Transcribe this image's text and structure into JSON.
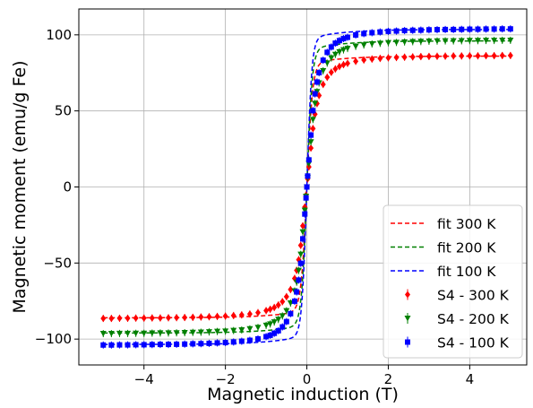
{
  "chart_data": {
    "type": "scatter",
    "title": "",
    "xlabel": "Magnetic induction (T)",
    "ylabel": "Magnetic moment (emu/g Fe)",
    "xlim": [
      -5.6,
      5.4
    ],
    "ylim": [
      -117,
      117
    ],
    "xticks": [
      -4,
      -2,
      0,
      2,
      4
    ],
    "xtick_labels": [
      "−4",
      "−2",
      "0",
      "2",
      "4"
    ],
    "yticks": [
      -100,
      -50,
      0,
      50,
      100
    ],
    "ytick_labels": [
      "−100",
      "−50",
      "0",
      "50",
      "100"
    ],
    "grid": true,
    "legend_position": "lower right",
    "fits": [
      {
        "name": "fit 300 K",
        "color": "#ff0000",
        "style": "dashed",
        "ms": 86,
        "b0": 0.14
      },
      {
        "name": "fit 200 K",
        "color": "#008000",
        "style": "dashed",
        "ms": 96,
        "b0": 0.13
      },
      {
        "name": "fit 100 K",
        "color": "#0000ff",
        "style": "dashed",
        "ms": 103.5,
        "b0": 0.12
      }
    ],
    "series": [
      {
        "name": "S4 - 300 K",
        "color": "#ff0000",
        "marker": "diamond",
        "x": [
          -5,
          -4.8,
          -4.6,
          -4.4,
          -4.2,
          -4,
          -3.8,
          -3.6,
          -3.4,
          -3.2,
          -3,
          -2.8,
          -2.6,
          -2.4,
          -2.2,
          -2,
          -1.8,
          -1.6,
          -1.4,
          -1.2,
          -1,
          -0.9,
          -0.8,
          -0.7,
          -0.6,
          -0.5,
          -0.4,
          -0.3,
          -0.25,
          -0.2,
          -0.15,
          -0.1,
          -0.05,
          -0.02,
          0,
          0.02,
          0.05,
          0.1,
          0.15,
          0.2,
          0.25,
          0.3,
          0.4,
          0.5,
          0.6,
          0.7,
          0.8,
          0.9,
          1,
          1.2,
          1.4,
          1.6,
          1.8,
          2,
          2.2,
          2.4,
          2.6,
          2.8,
          3,
          3.2,
          3.4,
          3.6,
          3.8,
          4,
          4.2,
          4.4,
          4.6,
          4.8,
          5
        ],
        "y": [
          -86.4,
          -86.4,
          -86.3,
          -86.3,
          -86.2,
          -86.2,
          -86.1,
          -86.1,
          -86,
          -85.9,
          -85.8,
          -85.7,
          -85.5,
          -85.3,
          -85.1,
          -84.9,
          -84.5,
          -84.1,
          -83.5,
          -82.6,
          -81.3,
          -80.4,
          -79.2,
          -77.6,
          -75.4,
          -72.1,
          -67.4,
          -60.1,
          -54.8,
          -47.8,
          -38.4,
          -25.6,
          -13.2,
          -5.3,
          0,
          5.3,
          13.2,
          25.6,
          38.4,
          47.8,
          54.8,
          60.1,
          67.4,
          72.1,
          75.4,
          77.6,
          79.2,
          80.4,
          81.3,
          82.6,
          83.5,
          84.1,
          84.5,
          84.9,
          85.1,
          85.3,
          85.5,
          85.7,
          85.8,
          85.9,
          86,
          86.1,
          86.1,
          86.2,
          86.2,
          86.3,
          86.3,
          86.4,
          86.4
        ]
      },
      {
        "name": "S4 - 200 K",
        "color": "#008000",
        "marker": "tri_down",
        "x": [
          -5,
          -4.8,
          -4.6,
          -4.4,
          -4.2,
          -4,
          -3.8,
          -3.6,
          -3.4,
          -3.2,
          -3,
          -2.8,
          -2.6,
          -2.4,
          -2.2,
          -2,
          -1.8,
          -1.6,
          -1.4,
          -1.2,
          -1,
          -0.9,
          -0.8,
          -0.7,
          -0.6,
          -0.5,
          -0.4,
          -0.3,
          -0.25,
          -0.2,
          -0.15,
          -0.1,
          -0.05,
          -0.02,
          0,
          0.02,
          0.05,
          0.1,
          0.15,
          0.2,
          0.25,
          0.3,
          0.4,
          0.5,
          0.6,
          0.7,
          0.8,
          0.9,
          1,
          1.2,
          1.4,
          1.6,
          1.8,
          2,
          2.2,
          2.4,
          2.6,
          2.8,
          3,
          3.2,
          3.4,
          3.6,
          3.8,
          4,
          4.2,
          4.4,
          4.6,
          4.8,
          5
        ],
        "y": [
          -96.4,
          -96.4,
          -96.3,
          -96.3,
          -96.2,
          -96.2,
          -96.1,
          -96,
          -96,
          -95.9,
          -95.8,
          -95.6,
          -95.5,
          -95.3,
          -95,
          -94.8,
          -94.4,
          -94,
          -93.3,
          -92.4,
          -91,
          -90.1,
          -88.8,
          -87.1,
          -84.8,
          -81.4,
          -76.3,
          -68.4,
          -62.6,
          -54.9,
          -44.3,
          -29.6,
          -15.4,
          -6.2,
          0,
          6.2,
          15.4,
          29.6,
          44.3,
          54.9,
          62.6,
          68.4,
          76.3,
          81.4,
          84.8,
          87.1,
          88.8,
          90.1,
          91,
          92.4,
          93.3,
          94,
          94.4,
          94.8,
          95,
          95.3,
          95.5,
          95.6,
          95.8,
          95.9,
          96,
          96,
          96.1,
          96.2,
          96.2,
          96.3,
          96.3,
          96.4,
          96.4
        ]
      },
      {
        "name": "S4 - 100 K",
        "color": "#0000ff",
        "marker": "square",
        "x": [
          -5,
          -4.8,
          -4.6,
          -4.4,
          -4.2,
          -4,
          -3.8,
          -3.6,
          -3.4,
          -3.2,
          -3,
          -2.8,
          -2.6,
          -2.4,
          -2.2,
          -2,
          -1.8,
          -1.6,
          -1.4,
          -1.2,
          -1,
          -0.9,
          -0.8,
          -0.7,
          -0.6,
          -0.5,
          -0.4,
          -0.3,
          -0.25,
          -0.2,
          -0.15,
          -0.1,
          -0.05,
          -0.02,
          0,
          0.02,
          0.05,
          0.1,
          0.15,
          0.2,
          0.25,
          0.3,
          0.4,
          0.5,
          0.6,
          0.7,
          0.8,
          0.9,
          1,
          1.2,
          1.4,
          1.6,
          1.8,
          2,
          2.2,
          2.4,
          2.6,
          2.8,
          3,
          3.2,
          3.4,
          3.6,
          3.8,
          4,
          4.2,
          4.4,
          4.6,
          4.8,
          5
        ],
        "y": [
          -103.9,
          -103.9,
          -103.8,
          -103.8,
          -103.7,
          -103.7,
          -103.6,
          -103.5,
          -103.5,
          -103.4,
          -103.3,
          -103.1,
          -103,
          -102.8,
          -102.5,
          -102.3,
          -101.9,
          -101.4,
          -100.8,
          -99.9,
          -98.4,
          -97.5,
          -96.2,
          -94.5,
          -92,
          -88.5,
          -83.3,
          -75.1,
          -69,
          -61.2,
          -50.2,
          -34.1,
          -17.8,
          -7.2,
          0,
          7.2,
          17.8,
          34.1,
          50.2,
          61.2,
          69,
          75.1,
          83.3,
          88.5,
          92,
          94.5,
          96.2,
          97.5,
          98.4,
          99.9,
          100.8,
          101.4,
          101.9,
          102.3,
          102.5,
          102.8,
          103,
          103.1,
          103.3,
          103.4,
          103.5,
          103.5,
          103.6,
          103.7,
          103.7,
          103.8,
          103.8,
          103.9,
          103.9
        ]
      }
    ]
  }
}
